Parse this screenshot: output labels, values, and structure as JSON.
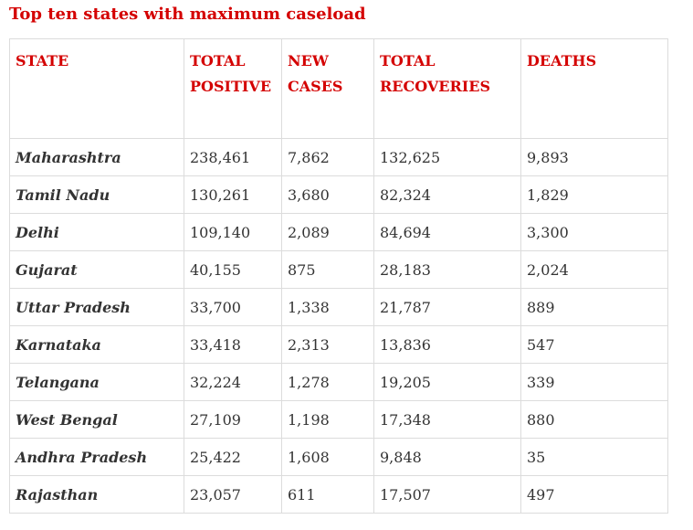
{
  "title": "Top ten states with maximum caseload",
  "table": {
    "headers": [
      "STATE",
      "TOTAL POSITIVE",
      "NEW CASES",
      "TOTAL RECOVERIES",
      "DEATHS"
    ],
    "rows": [
      [
        "Maharashtra",
        "238,461",
        "7,862",
        "132,625",
        "9,893"
      ],
      [
        "Tamil Nadu",
        "130,261",
        "3,680",
        "82,324",
        "1,829"
      ],
      [
        "Delhi",
        "109,140",
        "2,089",
        "84,694",
        "3,300"
      ],
      [
        "Gujarat",
        "40,155",
        "875",
        "28,183",
        "2,024"
      ],
      [
        "Uttar Pradesh",
        "33,700",
        "1,338",
        "21,787",
        "889"
      ],
      [
        "Karnataka",
        "33,418",
        "2,313",
        "13,836",
        "547"
      ],
      [
        "Telangana",
        "32,224",
        "1,278",
        "19,205",
        "339"
      ],
      [
        "West Bengal",
        "27,109",
        "1,198",
        "17,348",
        "880"
      ],
      [
        "Andhra Pradesh",
        "25,422",
        "1,608",
        "9,848",
        "35"
      ],
      [
        "Rajasthan",
        "23,057",
        "611",
        "17,507",
        "497"
      ]
    ]
  },
  "colors": {
    "heading": "#d40000",
    "text": "#333333",
    "border": "#dcdcdc"
  }
}
